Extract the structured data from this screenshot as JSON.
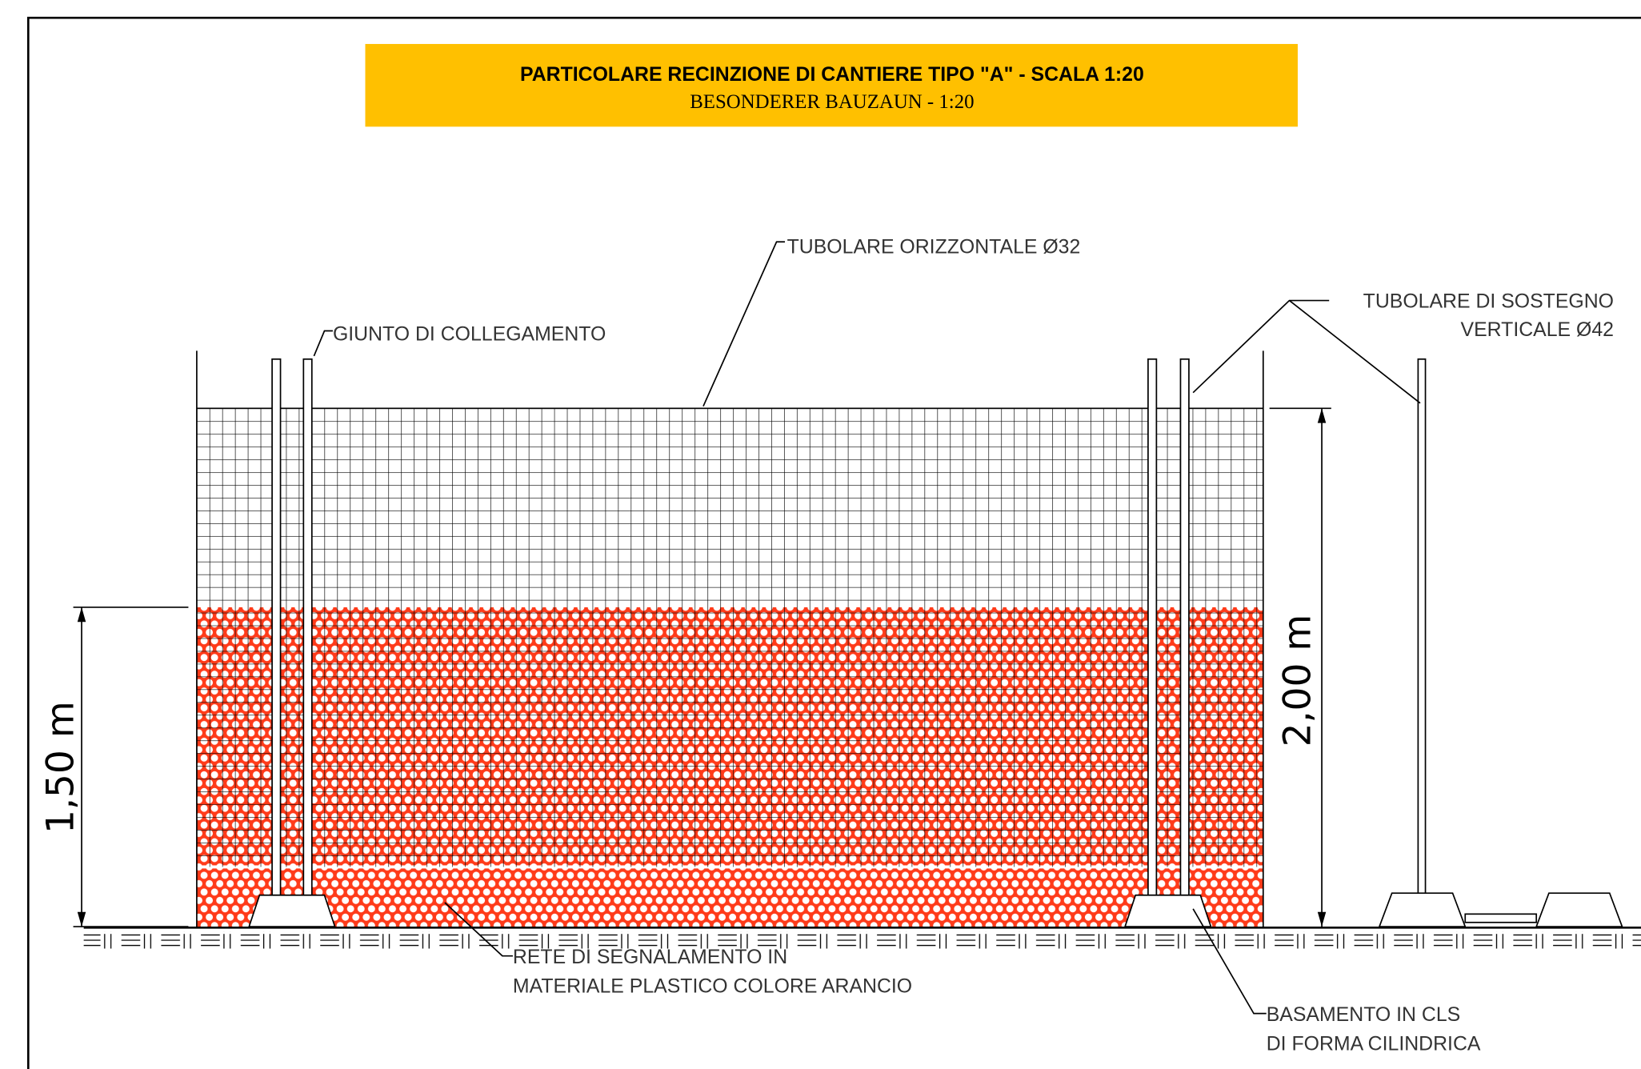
{
  "header": {
    "title": "PARTICOLARE RECINZIONE DI CANTIERE TIPO \"A\" - SCALA 1:20",
    "subtitle": "BESONDERER BAUZAUN - 1:20"
  },
  "labels": {
    "horizontal_tube": "TUBOLARE ORIZZONTALE Ø32",
    "joint": "GIUNTO DI COLLEGAMENTO",
    "vertical_tube": [
      "TUBOLARE DI SOSTEGNO",
      "VERTICALE Ø42"
    ],
    "net": [
      "RETE DI SEGNALAMENTO IN",
      "MATERIALE PLASTICO COLORE ARANCIO"
    ],
    "base": [
      "BASAMENTO IN CLS",
      "DI FORMA CILINDRICA"
    ]
  },
  "dimensions": {
    "net_height": "1,50 m",
    "fence_height": "2,00 m"
  }
}
